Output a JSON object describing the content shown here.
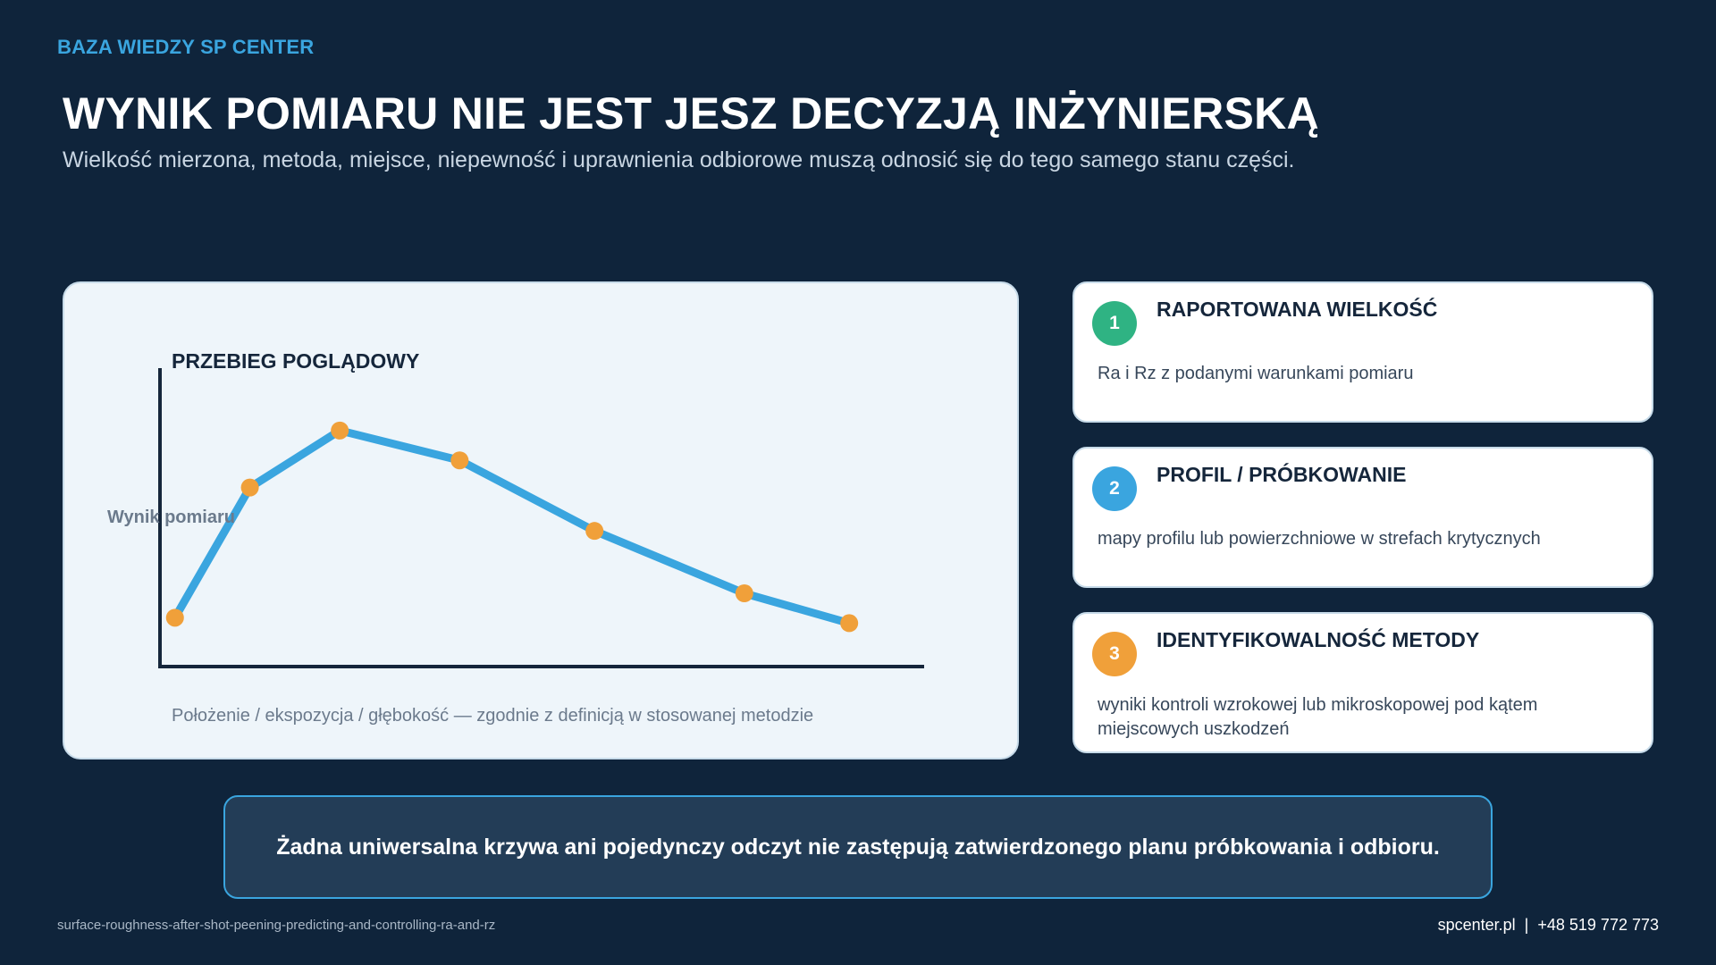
{
  "header": {
    "brand": "BAZA WIEDZY SP CENTER",
    "title": "WYNIK POMIARU NIE JEST JESZ DECYZJĄ INŻYNIERSKĄ",
    "subtitle": "Wielkość mierzona, metoda, miejsce, niepewność i uprawnienia odbiorowe muszą odnosić się do tego samego stanu części."
  },
  "chart_data": {
    "type": "line",
    "title": "PRZEBIEG POGLĄDOWY",
    "ylabel": "Wynik pomiaru",
    "xlabel": "Położenie / ekspozycja / głębokość — zgodnie z definicją w stosowanej metodzie",
    "x": [
      0,
      0.5,
      1.1,
      1.9,
      2.8,
      3.8,
      4.5
    ],
    "values": [
      0.18,
      0.66,
      0.87,
      0.76,
      0.5,
      0.27,
      0.16
    ],
    "xlim": [
      -0.1,
      5.0
    ],
    "ylim": [
      0,
      1.1
    ],
    "grid": false,
    "line_color": "#3aa5df",
    "marker_color": "#f0a03a"
  },
  "cards": [
    {
      "number": "1",
      "title": "RAPORTOWANA WIELKOŚĆ",
      "text": "Ra i Rz z podanymi warunkami pomiaru",
      "color": "#2fb383"
    },
    {
      "number": "2",
      "title": "PROFIL / PRÓBKOWANIE",
      "text": "mapy profilu lub powierzchniowe w strefach krytycznych",
      "color": "#3aa5df"
    },
    {
      "number": "3",
      "title": "IDENTYFIKOWALNOŚĆ METODY",
      "text": "wyniki kontroli wzrokowej lub mikroskopowej pod kątem miejscowych uszkodzeń",
      "color": "#f0a03a"
    }
  ],
  "callout": "Żadna uniwersalna krzywa ani pojedynczy odczyt nie zastępują zatwierdzonego planu próbkowania i odbioru.",
  "footer": {
    "slug": "surface-roughness-after-shot-peening-predicting-and-controlling-ra-and-rz",
    "site": "spcenter.pl",
    "separator": "|",
    "phone": "+48 519 772 773"
  }
}
